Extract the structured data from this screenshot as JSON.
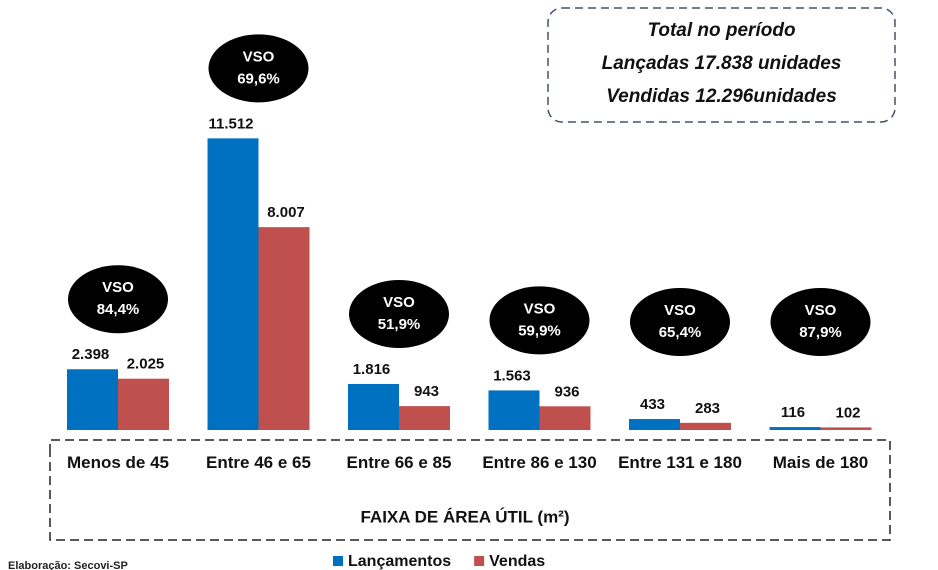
{
  "chart_data": {
    "type": "bar",
    "categories": [
      "Menos de 45",
      "Entre 46 e 65",
      "Entre 66 e 85",
      "Entre 86 e 130",
      "Entre 131 e 180",
      "Mais de 180"
    ],
    "series": [
      {
        "name": "Lançamentos",
        "color": "#0070c0",
        "values": [
          2398,
          11512,
          1816,
          1563,
          433,
          116
        ],
        "value_labels": [
          "2.398",
          "11.512",
          "1.816",
          "1.563",
          "433",
          "116"
        ]
      },
      {
        "name": "Vendas",
        "color": "#c0504d",
        "values": [
          2025,
          8007,
          943,
          936,
          283,
          102
        ],
        "value_labels": [
          "2.025",
          "8.007",
          "943",
          "936",
          "283",
          "102"
        ]
      }
    ],
    "ylim": [
      0,
      12000
    ],
    "x_label": "FAIXA DE ÁREA ÚTIL (m²)",
    "vso_title": "VSO",
    "vso_labels": [
      "84,4%",
      "69,6%",
      "51,9%",
      "59,9%",
      "65,4%",
      "87,9%"
    ],
    "summary": [
      "Total no período",
      "Lançadas 17.838 unidades",
      "Vendidas 12.296unidades"
    ],
    "source": "Elaboração: Secovi-SP"
  }
}
